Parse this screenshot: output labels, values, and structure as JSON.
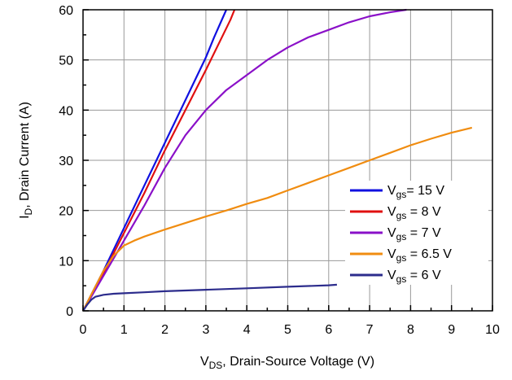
{
  "chart_data": {
    "type": "line",
    "xlabel_parts": [
      "V",
      "DS",
      ", Drain-Source Voltage (V)"
    ],
    "ylabel_parts": [
      "I",
      "D",
      ", Drain Current (A)"
    ],
    "xlim": [
      0,
      10
    ],
    "ylim": [
      0,
      60
    ],
    "x_ticks": [
      "0",
      "1",
      "2",
      "3",
      "4",
      "5",
      "6",
      "7",
      "8",
      "9",
      "10"
    ],
    "y_ticks": [
      "0",
      "10",
      "20",
      "30",
      "40",
      "50",
      "60"
    ],
    "grid": true,
    "legend_position": "lower-right",
    "series": [
      {
        "legend_parts": [
          "V",
          "gs",
          "= 15 V"
        ],
        "color": "#1010e0",
        "points": [
          [
            0,
            0
          ],
          [
            0.5,
            8
          ],
          [
            1,
            16.5
          ],
          [
            1.5,
            25
          ],
          [
            2,
            33.5
          ],
          [
            2.5,
            42
          ],
          [
            3,
            50.5
          ],
          [
            3.2,
            54.5
          ],
          [
            3.5,
            60
          ]
        ]
      },
      {
        "legend_parts": [
          "V",
          "gs",
          " = 8 V"
        ],
        "color": "#e01010",
        "points": [
          [
            0,
            0
          ],
          [
            0.5,
            7.5
          ],
          [
            1,
            15.5
          ],
          [
            1.5,
            23.5
          ],
          [
            2,
            32
          ],
          [
            2.5,
            40
          ],
          [
            3,
            48
          ],
          [
            3.3,
            53
          ],
          [
            3.6,
            58
          ],
          [
            3.7,
            60
          ]
        ]
      },
      {
        "legend_parts": [
          "V",
          "gs",
          " = 7 V"
        ],
        "color": "#8a10c8",
        "points": [
          [
            0,
            0
          ],
          [
            0.5,
            7
          ],
          [
            1,
            14
          ],
          [
            1.5,
            21
          ],
          [
            2,
            28.5
          ],
          [
            2.5,
            35
          ],
          [
            3,
            40
          ],
          [
            3.5,
            44
          ],
          [
            4,
            47
          ],
          [
            4.5,
            50
          ],
          [
            5,
            52.5
          ],
          [
            5.5,
            54.5
          ],
          [
            6,
            56
          ],
          [
            6.5,
            57.5
          ],
          [
            7,
            58.7
          ],
          [
            7.5,
            59.5
          ],
          [
            7.9,
            60
          ]
        ]
      },
      {
        "legend_parts": [
          "V",
          "gs",
          " = 6.5 V"
        ],
        "color": "#f08c10",
        "points": [
          [
            0,
            0
          ],
          [
            0.25,
            4
          ],
          [
            0.5,
            8
          ],
          [
            0.75,
            11
          ],
          [
            1,
            13
          ],
          [
            1.25,
            14
          ],
          [
            1.5,
            14.8
          ],
          [
            2,
            16.2
          ],
          [
            2.5,
            17.5
          ],
          [
            3,
            18.8
          ],
          [
            3.5,
            20
          ],
          [
            4,
            21.3
          ],
          [
            4.5,
            22.5
          ],
          [
            5,
            24
          ],
          [
            5.5,
            25.5
          ],
          [
            6,
            27
          ],
          [
            6.5,
            28.5
          ],
          [
            7,
            30
          ],
          [
            7.5,
            31.5
          ],
          [
            8,
            33
          ],
          [
            8.5,
            34.3
          ],
          [
            9,
            35.5
          ],
          [
            9.5,
            36.5
          ]
        ]
      },
      {
        "legend_parts": [
          "V",
          "gs",
          " = 6 V"
        ],
        "color": "#2c2c8c",
        "points": [
          [
            0,
            0
          ],
          [
            0.1,
            1.2
          ],
          [
            0.2,
            2.2
          ],
          [
            0.3,
            2.8
          ],
          [
            0.5,
            3.2
          ],
          [
            0.75,
            3.4
          ],
          [
            1,
            3.5
          ],
          [
            1.5,
            3.7
          ],
          [
            2,
            3.9
          ],
          [
            3,
            4.2
          ],
          [
            4,
            4.5
          ],
          [
            5,
            4.8
          ],
          [
            6,
            5.1
          ],
          [
            6.2,
            5.2
          ]
        ]
      }
    ]
  }
}
